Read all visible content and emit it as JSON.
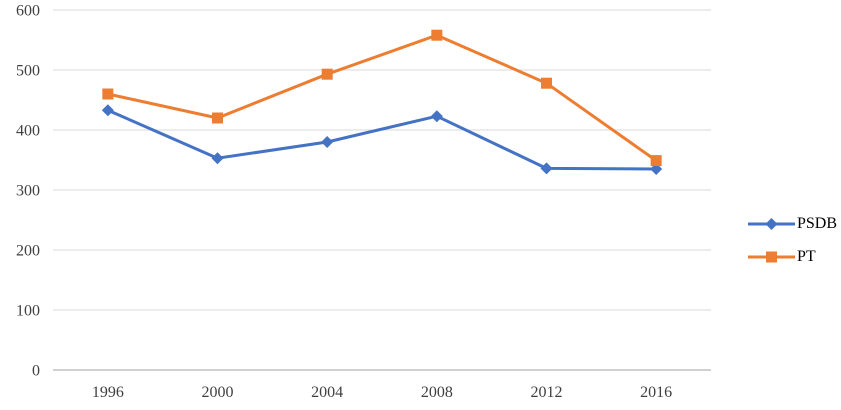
{
  "chart_data": {
    "type": "line",
    "title": "",
    "xlabel": "",
    "ylabel": "",
    "categories": [
      "1996",
      "2000",
      "2004",
      "2008",
      "2012",
      "2016"
    ],
    "series": [
      {
        "name": "PSDB",
        "values": [
          433,
          353,
          380,
          423,
          336,
          335
        ],
        "color": "#4472C4",
        "marker": "diamond"
      },
      {
        "name": "PT",
        "values": [
          460,
          420,
          493,
          558,
          478,
          349
        ],
        "color": "#ED7D31",
        "marker": "square"
      }
    ],
    "ylim": [
      0,
      600
    ],
    "yticks": [
      0,
      100,
      200,
      300,
      400,
      500,
      600
    ],
    "grid": true,
    "legend_position": "right",
    "gridline_color": "#D9D9D9",
    "axis_line_color": "#D0D0D0",
    "tick_label_color": "#3F3F3F",
    "line_width": 3
  }
}
